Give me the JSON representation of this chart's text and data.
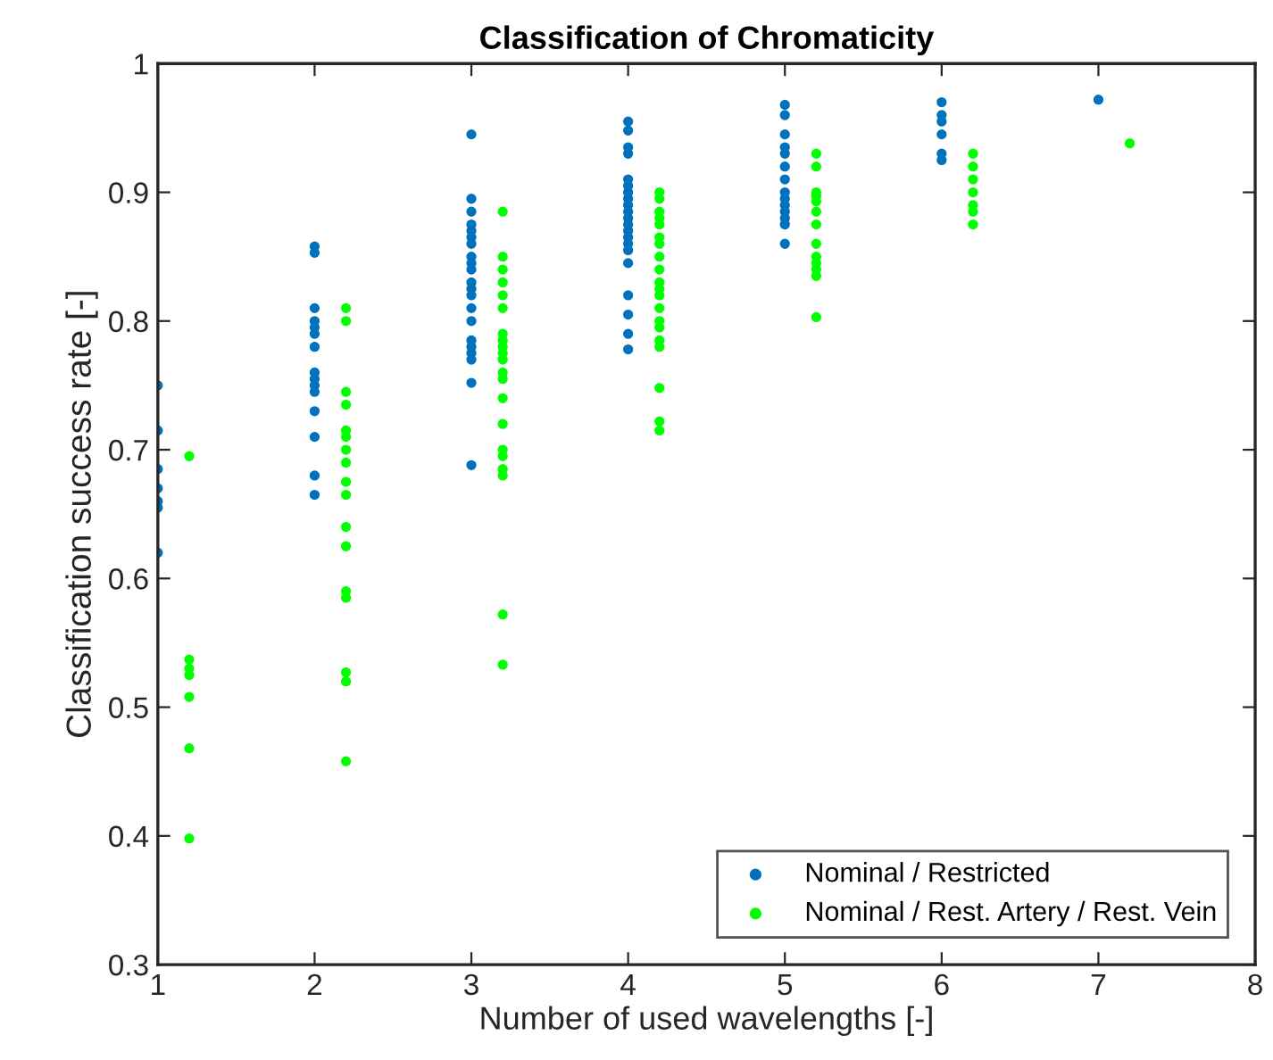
{
  "chart_data": {
    "type": "scatter",
    "title": "Classification of Chromaticity",
    "xlabel": "Number of used wavelengths [-]",
    "ylabel": "Classification success rate [-]",
    "xlim": [
      1,
      8
    ],
    "xticks": [
      1,
      2,
      3,
      4,
      5,
      6,
      7,
      8
    ],
    "ylim": [
      0.3,
      1
    ],
    "yticks": [
      0.3,
      0.4,
      0.5,
      0.6,
      0.7,
      0.8,
      0.9,
      1
    ],
    "grid": false,
    "legend": "bottom right",
    "marker": "circle",
    "series": [
      {
        "name": "Nominal / Restricted",
        "color": "#0072bd",
        "x": [
          1,
          1,
          1,
          1,
          1,
          1,
          1,
          2,
          2,
          2,
          2,
          2,
          2,
          2,
          2,
          2,
          2,
          2,
          2,
          2,
          2,
          2,
          3,
          3,
          3,
          3,
          3,
          3,
          3,
          3,
          3,
          3,
          3,
          3,
          3,
          3,
          3,
          3,
          3,
          3,
          3,
          3,
          3,
          4,
          4,
          4,
          4,
          4,
          4,
          4,
          4,
          4,
          4,
          4,
          4,
          4,
          4,
          4,
          4,
          4,
          4,
          4,
          4,
          4,
          5,
          5,
          5,
          5,
          5,
          5,
          5,
          5,
          5,
          5,
          5,
          5,
          5,
          5,
          6,
          6,
          6,
          6,
          6,
          6,
          7
        ],
        "values": [
          0.75,
          0.715,
          0.685,
          0.67,
          0.66,
          0.655,
          0.62,
          0.858,
          0.853,
          0.81,
          0.8,
          0.795,
          0.79,
          0.78,
          0.76,
          0.755,
          0.75,
          0.745,
          0.73,
          0.71,
          0.68,
          0.665,
          0.945,
          0.895,
          0.885,
          0.875,
          0.87,
          0.865,
          0.86,
          0.85,
          0.845,
          0.84,
          0.83,
          0.825,
          0.82,
          0.81,
          0.8,
          0.785,
          0.78,
          0.775,
          0.77,
          0.752,
          0.688,
          0.955,
          0.948,
          0.935,
          0.93,
          0.91,
          0.905,
          0.9,
          0.895,
          0.89,
          0.885,
          0.88,
          0.875,
          0.87,
          0.865,
          0.86,
          0.855,
          0.845,
          0.82,
          0.805,
          0.79,
          0.778,
          0.968,
          0.96,
          0.945,
          0.935,
          0.93,
          0.92,
          0.91,
          0.9,
          0.895,
          0.89,
          0.885,
          0.88,
          0.875,
          0.86,
          0.97,
          0.96,
          0.955,
          0.945,
          0.93,
          0.925,
          0.972
        ]
      },
      {
        "name": "Nominal / Rest. Artery / Rest. Vein",
        "color": "#00ff00",
        "x": [
          1.2,
          1.2,
          1.2,
          1.2,
          1.2,
          1.2,
          1.2,
          2.2,
          2.2,
          2.2,
          2.2,
          2.2,
          2.2,
          2.2,
          2.2,
          2.2,
          2.2,
          2.2,
          2.2,
          2.2,
          2.2,
          2.2,
          2.2,
          2.2,
          3.2,
          3.2,
          3.2,
          3.2,
          3.2,
          3.2,
          3.2,
          3.2,
          3.2,
          3.2,
          3.2,
          3.2,
          3.2,
          3.2,
          3.2,
          3.2,
          3.2,
          3.2,
          3.2,
          3.2,
          3.2,
          4.2,
          4.2,
          4.2,
          4.2,
          4.2,
          4.2,
          4.2,
          4.2,
          4.2,
          4.2,
          4.2,
          4.2,
          4.2,
          4.2,
          4.2,
          4.2,
          4.2,
          4.2,
          4.2,
          4.2,
          5.2,
          5.2,
          5.2,
          5.2,
          5.2,
          5.2,
          5.2,
          5.2,
          5.2,
          5.2,
          5.2,
          5.2,
          5.2,
          6.2,
          6.2,
          6.2,
          6.2,
          6.2,
          6.2,
          6.2,
          7.2
        ],
        "values": [
          0.695,
          0.537,
          0.53,
          0.525,
          0.508,
          0.468,
          0.398,
          0.81,
          0.8,
          0.745,
          0.735,
          0.715,
          0.71,
          0.7,
          0.69,
          0.675,
          0.665,
          0.64,
          0.625,
          0.59,
          0.585,
          0.527,
          0.52,
          0.458,
          0.885,
          0.85,
          0.84,
          0.83,
          0.82,
          0.81,
          0.79,
          0.785,
          0.78,
          0.775,
          0.77,
          0.76,
          0.755,
          0.74,
          0.72,
          0.7,
          0.695,
          0.685,
          0.68,
          0.572,
          0.533,
          0.9,
          0.895,
          0.885,
          0.88,
          0.875,
          0.865,
          0.86,
          0.85,
          0.84,
          0.83,
          0.825,
          0.82,
          0.81,
          0.8,
          0.795,
          0.785,
          0.78,
          0.748,
          0.722,
          0.715,
          0.93,
          0.92,
          0.9,
          0.897,
          0.893,
          0.885,
          0.875,
          0.86,
          0.85,
          0.845,
          0.84,
          0.835,
          0.803,
          0.93,
          0.92,
          0.91,
          0.9,
          0.89,
          0.885,
          0.875,
          0.938
        ]
      }
    ]
  }
}
